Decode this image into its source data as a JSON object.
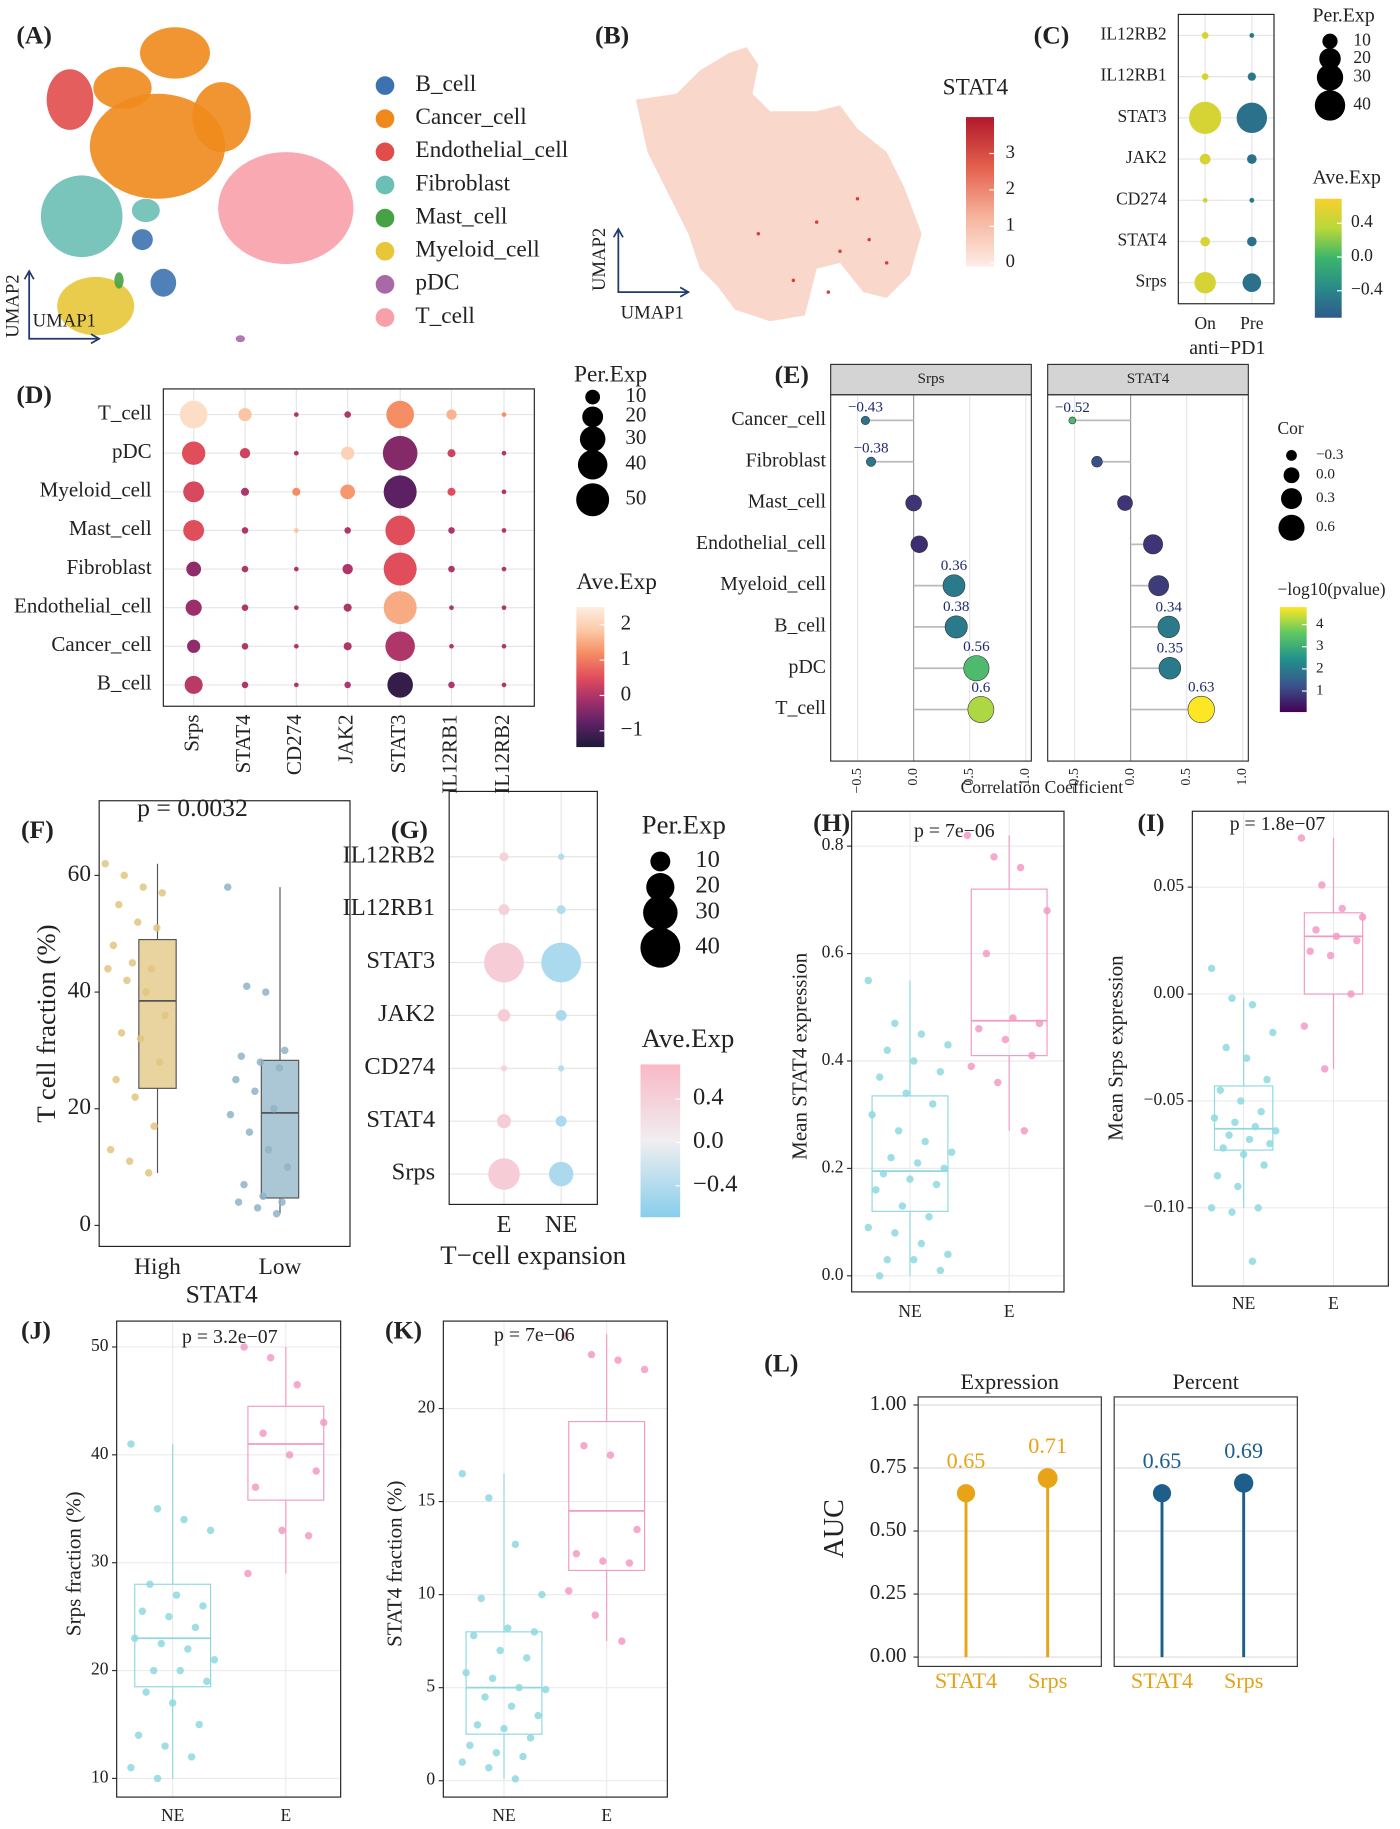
{
  "chart_data": [
    {
      "type": "umap",
      "label": "(A)",
      "x_label": "UMAP1",
      "y_label": "UMAP2",
      "categories": [
        "B_cell",
        "Cancer_cell",
        "Endothelial_cell",
        "Fibroblast",
        "Mast_cell",
        "Myeloid_cell",
        "pDC",
        "T_cell"
      ],
      "colors": [
        "#3d72b0",
        "#f0891c",
        "#e04d4a",
        "#6bbfb4",
        "#47a246",
        "#e8c63a",
        "#a86aa6",
        "#f7a0a8"
      ]
    },
    {
      "type": "feature",
      "label": "(B)",
      "title": "STAT4",
      "x_label": "UMAP1",
      "y_label": "UMAP2",
      "clim": [
        -0.1,
        4.0
      ],
      "color_ticks": [
        0,
        1,
        2,
        3
      ],
      "colors": [
        "#fdece5",
        "#f6b39c",
        "#e3604d",
        "#b2182b"
      ]
    },
    {
      "type": "dotplot",
      "label": "(C)",
      "rows": [
        "IL12RB2",
        "IL12RB1",
        "STAT3",
        "JAK2",
        "CD274",
        "STAT4",
        "Srps"
      ],
      "columns": [
        "On",
        "Pre"
      ],
      "x_label": "anti−PD1",
      "sizes": [
        [
          2,
          1
        ],
        [
          2,
          3
        ],
        [
          45,
          40
        ],
        [
          5,
          4
        ],
        [
          1,
          1
        ],
        [
          4,
          4
        ],
        [
          20,
          15
        ]
      ],
      "color_values": [
        [
          0.5,
          -0.5
        ],
        [
          0.5,
          -0.5
        ],
        [
          0.5,
          -0.55
        ],
        [
          0.5,
          -0.55
        ],
        [
          0.45,
          -0.5
        ],
        [
          0.5,
          -0.55
        ],
        [
          0.5,
          -0.55
        ]
      ],
      "size_title": "Per.Exp",
      "size_ticks": [
        10,
        20,
        30,
        40
      ],
      "color_title": "Ave.Exp",
      "clim": [
        -0.72,
        0.69
      ],
      "color_ticks": [
        0.4,
        {
          "value": 0,
          "label": "0.0"
        },
        {
          "value": -0.4,
          "label": "−0.4"
        }
      ],
      "colors": [
        "#2e5a8c",
        "#2a8a8a",
        "#3bb56b",
        "#b8d83a",
        "#f8cf2d"
      ]
    },
    {
      "type": "dotplot",
      "label": "(D)",
      "rows": [
        "T_cell",
        "pDC",
        "Myeloid_cell",
        "Mast_cell",
        "Fibroblast",
        "Endothelial_cell",
        "Cancer_cell",
        "B_cell"
      ],
      "columns": [
        "Srps",
        "STAT4",
        "CD274",
        "JAK2",
        "STAT3",
        "IL12RB1",
        "IL12RB2"
      ],
      "sizes": [
        [
          35,
          8,
          1,
          2,
          35,
          5,
          1
        ],
        [
          25,
          5,
          1,
          8,
          55,
          3,
          1
        ],
        [
          20,
          3,
          3,
          10,
          50,
          3,
          1
        ],
        [
          20,
          2,
          1,
          2,
          40,
          2,
          1
        ],
        [
          10,
          2,
          1,
          5,
          50,
          2,
          1
        ],
        [
          12,
          2,
          1,
          3,
          50,
          1,
          1
        ],
        [
          8,
          2,
          1,
          3,
          40,
          1,
          1
        ],
        [
          15,
          2,
          1,
          2,
          30,
          2,
          1
        ]
      ],
      "color_values": [
        [
          2.2,
          1.8,
          0,
          0,
          1.2,
          1.6,
          1.2
        ],
        [
          0.5,
          0.3,
          0,
          2,
          -0.4,
          0.3,
          0
        ],
        [
          0.4,
          0,
          1.2,
          1.3,
          -0.8,
          0.5,
          0
        ],
        [
          0.5,
          0,
          1.8,
          0,
          0.5,
          0,
          0
        ],
        [
          -0.3,
          0,
          0,
          0,
          0.5,
          0,
          0
        ],
        [
          -0.2,
          0,
          0,
          0,
          1.5,
          0,
          0
        ],
        [
          -0.3,
          0,
          0,
          0,
          0,
          0,
          0
        ],
        [
          0.1,
          0,
          0,
          0,
          -1.2,
          0,
          0
        ]
      ],
      "size_title": "Per.Exp",
      "size_ticks": [
        10,
        20,
        30,
        40,
        50
      ],
      "color_title": "Ave.Exp",
      "clim": [
        -1.46,
        2.5
      ],
      "color_ticks": [
        2,
        1,
        0,
        {
          "value": -1,
          "label": "−1"
        }
      ],
      "colors": [
        "#1d1b3a",
        "#5b2163",
        "#a1306b",
        "#e24e5b",
        "#f58c62",
        "#fbc9a7",
        "#fdeee0"
      ]
    },
    {
      "type": "lollipop",
      "label": "(E)",
      "categories": [
        "Cancer_cell",
        "Fibroblast",
        "Mast_cell",
        "Endothelial_cell",
        "Myeloid_cell",
        "B_cell",
        "pDC",
        "T_cell"
      ],
      "series": [
        {
          "name": "Srps",
          "values": [
            -0.43,
            -0.38,
            0.0,
            0.05,
            0.36,
            0.38,
            0.56,
            0.6
          ],
          "value_labels": [
            "−0.43",
            "−0.38",
            null,
            null,
            "0.36",
            "0.38",
            "0.56",
            "0.6"
          ],
          "pvalues": [
            1.8,
            1.9,
            0.8,
            0.7,
            2.0,
            2.0,
            3.3,
            4.2
          ]
        },
        {
          "name": "STAT4",
          "values": [
            -0.52,
            -0.3,
            -0.05,
            0.2,
            0.25,
            0.34,
            0.35,
            0.63
          ],
          "value_labels": [
            "−0.52",
            null,
            null,
            null,
            null,
            "0.34",
            "0.35",
            "0.63"
          ],
          "pvalues": [
            3.3,
            1.2,
            0.8,
            0.8,
            0.9,
            2.0,
            2.0,
            4.8
          ]
        }
      ],
      "x_label": "Correlation Coefficient",
      "xlim": [
        -0.74,
        1.05
      ],
      "xticks": [
        {
          "value": -0.5,
          "label": "−0.5"
        },
        {
          "value": 0,
          "label": "0.0"
        },
        0.5,
        {
          "value": 1,
          "label": "1.0"
        }
      ],
      "size_title": "Cor",
      "size_ticks": [
        {
          "value": -0.3,
          "label": "−0.3"
        },
        {
          "value": 0,
          "label": "0.0"
        },
        0.3,
        0.6
      ],
      "color_title": "−log10(pvalue)",
      "clim": [
        0.05,
        4.79
      ],
      "color_ticks": [
        4,
        3,
        2,
        1
      ],
      "colors": [
        "#440154",
        "#3b528b",
        "#21908c",
        "#5dc863",
        "#fde725"
      ]
    },
    {
      "type": "box",
      "label": "(F)",
      "annotation": "p = 0.0032",
      "categories": [
        "High",
        "Low"
      ],
      "x_label": "STAT4",
      "y_label": "T cell fraction (%)",
      "ylim": [
        -3.6,
        72.8
      ],
      "yticks": [
        0,
        20,
        40,
        60
      ],
      "colors": [
        "#e2c47f",
        "#8fb3c6"
      ],
      "fill": true,
      "grid": false,
      "boxes": [
        {
          "min": 9,
          "q1": 23.5,
          "median": 38.5,
          "q3": 49,
          "max": 62
        },
        {
          "min": 2,
          "q1": 4.7,
          "median": 19.3,
          "q3": 28.3,
          "max": 58
        }
      ],
      "points": [
        [
          62,
          60,
          58,
          57,
          55,
          52,
          51,
          48,
          45,
          44,
          44,
          42,
          40,
          36,
          33,
          32,
          28,
          25,
          22,
          17,
          13,
          11,
          9
        ],
        [
          58,
          41,
          40,
          30,
          29,
          28,
          27,
          25,
          23,
          20,
          19,
          16,
          13,
          10,
          7,
          5,
          4,
          4,
          3,
          2
        ]
      ]
    },
    {
      "type": "dotplot",
      "label": "(G)",
      "rows": [
        "IL12RB2",
        "IL12RB1",
        "STAT3",
        "JAK2",
        "CD274",
        "STAT4",
        "Srps"
      ],
      "columns": [
        "E",
        "NE"
      ],
      "x_label": "T−cell expansion",
      "sizes": [
        [
          2,
          1
        ],
        [
          3,
          2
        ],
        [
          40,
          40
        ],
        [
          4,
          3
        ],
        [
          1,
          1
        ],
        [
          5,
          3
        ],
        [
          25,
          15
        ]
      ],
      "color_values": [
        [
          0.4,
          -0.4
        ],
        [
          0.4,
          -0.4
        ],
        [
          0.45,
          -0.45
        ],
        [
          0.45,
          -0.45
        ],
        [
          0.35,
          -0.35
        ],
        [
          0.45,
          -0.45
        ],
        [
          0.45,
          -0.45
        ]
      ],
      "size_title": "Per.Exp",
      "size_ticks": [
        10,
        20,
        30,
        40
      ],
      "color_title": "Ave.Exp",
      "clim": [
        -0.69,
        0.72
      ],
      "color_ticks": [
        0.4,
        {
          "value": 0,
          "label": "0.0"
        },
        {
          "value": -0.4,
          "label": "−0.4"
        }
      ],
      "colors": [
        "#87ceeb",
        "#f0eef0",
        "#f9b8c6"
      ]
    },
    {
      "type": "box",
      "label": "(H)",
      "annotation": "p = 7e−06",
      "categories": [
        "NE",
        "E"
      ],
      "y_label": "Mean STAT4 expression",
      "ylim": [
        -0.03,
        0.865
      ],
      "yticks": [
        {
          "value": 0,
          "label": "0.0"
        },
        0.2,
        0.4,
        0.6,
        0.8
      ],
      "colors": [
        "#8fd8e0",
        "#f29ac4"
      ],
      "fill": false,
      "grid": true,
      "boxes": [
        {
          "min": 0.0,
          "q1": 0.12,
          "median": 0.195,
          "q3": 0.335,
          "max": 0.55
        },
        {
          "min": 0.27,
          "q1": 0.41,
          "median": 0.475,
          "q3": 0.72,
          "max": 0.82
        }
      ],
      "points": [
        [
          0.55,
          0.47,
          0.45,
          0.43,
          0.42,
          0.4,
          0.38,
          0.37,
          0.34,
          0.32,
          0.3,
          0.27,
          0.25,
          0.23,
          0.22,
          0.21,
          0.2,
          0.19,
          0.18,
          0.17,
          0.16,
          0.13,
          0.11,
          0.09,
          0.08,
          0.06,
          0.04,
          0.03,
          0.03,
          0.01,
          0.0
        ],
        [
          0.82,
          0.78,
          0.76,
          0.68,
          0.6,
          0.48,
          0.47,
          0.46,
          0.44,
          0.41,
          0.39,
          0.36,
          0.27
        ]
      ]
    },
    {
      "type": "box",
      "label": "(I)",
      "annotation": "p = 1.8e−07",
      "categories": [
        "NE",
        "E"
      ],
      "y_label": "Mean Srps expression",
      "ylim": [
        -0.1366,
        0.0855
      ],
      "yticks": [
        {
          "value": -0.1,
          "label": "−0.10"
        },
        {
          "value": -0.05,
          "label": "−0.05"
        },
        {
          "value": 0,
          "label": "0.00"
        },
        0.05
      ],
      "colors": [
        "#8fd8e0",
        "#f29ac4"
      ],
      "fill": false,
      "grid": true,
      "boxes": [
        {
          "min": -0.1,
          "q1": -0.073,
          "median": -0.063,
          "q3": -0.043,
          "max": -0.002
        },
        {
          "min": -0.035,
          "q1": 0.0,
          "median": 0.027,
          "q3": 0.038,
          "max": 0.073
        }
      ],
      "points": [
        [
          0.012,
          -0.002,
          -0.005,
          -0.018,
          -0.025,
          -0.03,
          -0.04,
          -0.045,
          -0.05,
          -0.055,
          -0.058,
          -0.06,
          -0.062,
          -0.064,
          -0.066,
          -0.068,
          -0.07,
          -0.072,
          -0.075,
          -0.08,
          -0.085,
          -0.09,
          -0.1,
          -0.1,
          -0.102,
          -0.125
        ],
        [
          0.073,
          0.051,
          0.04,
          0.036,
          0.03,
          0.027,
          0.025,
          0.02,
          0.018,
          0.0,
          -0.015,
          -0.035
        ]
      ]
    },
    {
      "type": "box",
      "label": "(J)",
      "annotation": "p = 3.2e−07",
      "categories": [
        "NE",
        "E"
      ],
      "y_label": "Srps fraction (%)",
      "ylim": [
        8.27,
        52.4
      ],
      "yticks": [
        10,
        20,
        30,
        40,
        50
      ],
      "colors": [
        "#8fd8e0",
        "#f29ac4"
      ],
      "fill": false,
      "grid": true,
      "boxes": [
        {
          "min": 10,
          "q1": 18.5,
          "median": 23,
          "q3": 28,
          "max": 41
        },
        {
          "min": 29,
          "q1": 35.8,
          "median": 41,
          "q3": 44.5,
          "max": 50
        }
      ],
      "points": [
        [
          41,
          35,
          34,
          33,
          28,
          27,
          26,
          25.5,
          25,
          24,
          23,
          22.5,
          22,
          21,
          20,
          20,
          19,
          18,
          17,
          15,
          14,
          13,
          12,
          11,
          10
        ],
        [
          50,
          49,
          46.5,
          43,
          42,
          40,
          38.5,
          37,
          33,
          32.5,
          29
        ]
      ]
    },
    {
      "type": "box",
      "label": "(K)",
      "annotation": "p = 7e−06",
      "categories": [
        "NE",
        "E"
      ],
      "y_label": "STAT4 fraction (%)",
      "ylim": [
        -0.88,
        24.7
      ],
      "yticks": [
        0,
        5,
        10,
        15,
        20
      ],
      "colors": [
        "#8fd8e0",
        "#f29ac4"
      ],
      "fill": false,
      "grid": true,
      "boxes": [
        {
          "min": 0.1,
          "q1": 2.5,
          "median": 5,
          "q3": 8,
          "max": 16.5
        },
        {
          "min": 7.5,
          "q1": 11.3,
          "median": 14.5,
          "q3": 19.3,
          "max": 24
        }
      ],
      "points": [
        [
          16.5,
          15.2,
          12.7,
          10,
          9.8,
          8.2,
          8,
          7.8,
          7,
          6.6,
          5.8,
          5.5,
          5,
          4.9,
          4.5,
          4,
          3.5,
          3,
          2.8,
          2.3,
          1.9,
          1.5,
          1.3,
          1,
          0.7,
          0.1
        ],
        [
          23.9,
          22.9,
          22.6,
          22.1,
          18,
          17.5,
          13.5,
          12.2,
          11.8,
          11.7,
          10.2,
          8.9,
          7.5
        ]
      ]
    },
    {
      "type": "auc",
      "label": "(L)",
      "y_label": "AUC",
      "ylim": [
        -0.037,
        1.032
      ],
      "yticks": [
        {
          "value": 0,
          "label": "0.00"
        },
        {
          "value": 0.25,
          "label": "0.25"
        },
        {
          "value": 0.5,
          "label": "0.50"
        },
        {
          "value": 0.75,
          "label": "0.75"
        },
        {
          "value": 1,
          "label": "1.00"
        }
      ],
      "categories": [
        "STAT4",
        "Srps"
      ],
      "category_color": "#e3a21a",
      "series": [
        {
          "name": "Expression",
          "color": "#e8a317",
          "values": [
            0.65,
            0.71
          ]
        },
        {
          "name": "Percent",
          "color": "#1d5f8a",
          "values": [
            0.65,
            0.69
          ]
        }
      ]
    }
  ]
}
